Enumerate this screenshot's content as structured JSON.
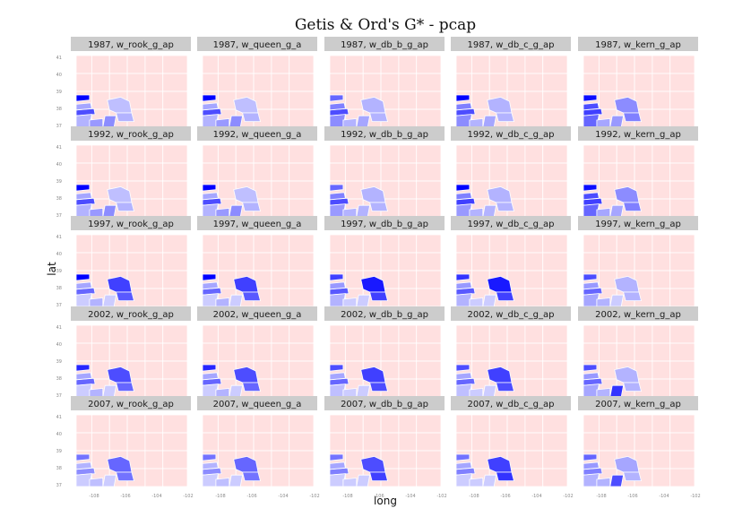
{
  "chart_data": {
    "type": "choropleth-facet-grid",
    "title": "Getis & Ord's G* - pcap",
    "xlabel": "long",
    "ylabel": "lat",
    "x_ticks": [
      "-108",
      "-106",
      "-104",
      "-102"
    ],
    "y_ticks": [
      "41",
      "40",
      "39",
      "38",
      "37"
    ],
    "xlim": [
      -109.1,
      -102.0
    ],
    "ylim": [
      36.9,
      41.1
    ],
    "colors": {
      "low": "#0000ff",
      "mid": "#ffffff",
      "high": "#ffe0e0",
      "strip": "#cccccc"
    },
    "years": [
      "1987",
      "1992",
      "1997",
      "2002",
      "2007"
    ],
    "weights": [
      "w_rook_g_ap",
      "w_queen_g_a",
      "w_db_b_g_ap",
      "w_db_c_g_ap",
      "w_kern_g_ap"
    ],
    "panels": [
      [
        "1987, w_rook_g_ap",
        "1987, w_queen_g_a",
        "1987, w_db_b_g_ap",
        "1987, w_db_c_g_ap",
        "1987, w_kern_g_ap"
      ],
      [
        "1992, w_rook_g_ap",
        "1992, w_queen_g_a",
        "1992, w_db_b_g_ap",
        "1992, w_db_c_g_ap",
        "1992, w_kern_g_ap"
      ],
      [
        "1997, w_rook_g_ap",
        "1997, w_queen_g_a",
        "1997, w_db_b_g_ap",
        "1997, w_db_c_g_ap",
        "1997, w_kern_g_ap"
      ],
      [
        "2002, w_rook_g_ap",
        "2002, w_queen_g_a",
        "2002, w_db_b_g_ap",
        "2002, w_db_c_g_ap",
        "2002, w_kern_g_ap"
      ],
      [
        "2007, w_rook_g_ap",
        "2007, w_queen_g_a",
        "2007, w_db_b_g_ap",
        "2007, w_db_c_g_ap",
        "2007, w_kern_g_ap"
      ]
    ],
    "cold_spots": [
      [
        [
          [
            1.0,
            0.7,
            0.35,
            0.3,
            0.25,
            0.3,
            0.45,
            0.4
          ],
          [
            1.0,
            0.7,
            0.35,
            0.3,
            0.25,
            0.3,
            0.45,
            0.4
          ],
          [
            0.6,
            0.7,
            0.5,
            0.45,
            0.3,
            0.3,
            0.35,
            0.3
          ],
          [
            1.0,
            0.7,
            0.5,
            0.45,
            0.3,
            0.3,
            0.35,
            0.3
          ],
          [
            0.95,
            0.75,
            0.7,
            0.6,
            0.45,
            0.5,
            0.4,
            0.35
          ]
        ],
        [
          [
            1.0,
            0.7,
            0.35,
            0.3,
            0.25,
            0.3,
            0.45,
            0.4
          ],
          [
            1.0,
            0.7,
            0.35,
            0.3,
            0.25,
            0.3,
            0.45,
            0.4
          ],
          [
            0.6,
            0.7,
            0.5,
            0.4,
            0.3,
            0.3,
            0.3,
            0.3
          ],
          [
            1.0,
            0.75,
            0.5,
            0.4,
            0.3,
            0.3,
            0.3,
            0.3
          ],
          [
            0.95,
            0.75,
            0.7,
            0.6,
            0.45,
            0.5,
            0.35,
            0.35
          ]
        ],
        [
          [
            1.0,
            0.6,
            0.35,
            0.2,
            0.75,
            0.65,
            0.2,
            0.3
          ],
          [
            1.0,
            0.6,
            0.35,
            0.2,
            0.75,
            0.65,
            0.2,
            0.3
          ],
          [
            0.75,
            0.65,
            0.4,
            0.3,
            0.9,
            0.75,
            0.2,
            0.2
          ],
          [
            0.8,
            0.65,
            0.4,
            0.3,
            0.9,
            0.75,
            0.2,
            0.2
          ],
          [
            0.7,
            0.6,
            0.4,
            0.35,
            0.3,
            0.3,
            0.2,
            0.3
          ]
        ],
        [
          [
            0.85,
            0.6,
            0.35,
            0.2,
            0.7,
            0.6,
            0.2,
            0.3
          ],
          [
            0.85,
            0.6,
            0.35,
            0.2,
            0.7,
            0.6,
            0.2,
            0.3
          ],
          [
            0.7,
            0.6,
            0.35,
            0.25,
            0.75,
            0.7,
            0.2,
            0.2
          ],
          [
            0.7,
            0.6,
            0.35,
            0.25,
            0.75,
            0.7,
            0.2,
            0.2
          ],
          [
            0.7,
            0.6,
            0.4,
            0.35,
            0.3,
            0.3,
            0.8,
            0.3
          ]
        ],
        [
          [
            0.55,
            0.45,
            0.3,
            0.2,
            0.6,
            0.55,
            0.2,
            0.25
          ],
          [
            0.55,
            0.45,
            0.3,
            0.2,
            0.6,
            0.55,
            0.2,
            0.25
          ],
          [
            0.55,
            0.5,
            0.35,
            0.2,
            0.7,
            0.75,
            0.2,
            0.2
          ],
          [
            0.55,
            0.5,
            0.35,
            0.2,
            0.75,
            0.8,
            0.2,
            0.2
          ],
          [
            0.6,
            0.5,
            0.4,
            0.3,
            0.35,
            0.3,
            0.7,
            0.3
          ]
        ]
      ]
    ]
  }
}
